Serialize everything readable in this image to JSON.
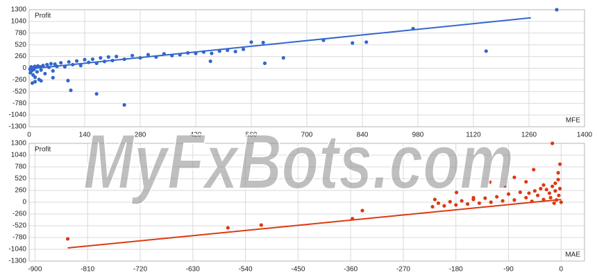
{
  "watermark": "MyFxBots.com",
  "chart_data": [
    {
      "type": "scatter",
      "y_label": "Profit",
      "x_label": "MFE",
      "color": "#3366cc",
      "x": [
        2,
        3,
        5,
        6,
        8,
        10,
        12,
        14,
        15,
        18,
        20,
        22,
        25,
        28,
        30,
        35,
        40,
        45,
        50,
        55,
        60,
        65,
        70,
        80,
        90,
        100,
        110,
        120,
        130,
        140,
        150,
        160,
        170,
        180,
        190,
        200,
        210,
        220,
        240,
        260,
        280,
        300,
        320,
        340,
        360,
        380,
        400,
        420,
        440,
        460,
        480,
        500,
        520,
        540,
        98,
        105,
        170,
        240,
        457,
        594,
        641,
        590,
        560,
        742,
        815,
        850,
        968,
        1152,
        1330,
        30,
        60,
        15,
        8
      ],
      "values": [
        -20,
        -100,
        30,
        -60,
        10,
        -150,
        -30,
        40,
        -200,
        20,
        -80,
        50,
        -250,
        30,
        -40,
        60,
        -120,
        80,
        20,
        100,
        -60,
        90,
        40,
        120,
        30,
        140,
        80,
        160,
        60,
        190,
        130,
        200,
        110,
        230,
        150,
        250,
        170,
        260,
        200,
        280,
        230,
        300,
        250,
        320,
        280,
        300,
        340,
        330,
        360,
        330,
        380,
        400,
        370,
        420,
        -275,
        -490,
        -570,
        -815,
        155,
        110,
        230,
        570,
        580,
        620,
        560,
        580,
        880,
        380,
        1300,
        -280,
        -210,
        -300,
        -330
      ],
      "trendline": {
        "x": [
          0,
          1265
        ],
        "values": [
          -15,
          1120
        ],
        "color": "#3366cc"
      },
      "xlim": [
        0,
        1400
      ],
      "xticks": [
        0,
        140,
        280,
        420,
        560,
        700,
        840,
        980,
        1120,
        1260,
        1400
      ],
      "ylim": [
        -1300,
        1300
      ],
      "yticks": [
        -1300,
        -1040,
        -780,
        -520,
        -260,
        0,
        260,
        520,
        780,
        1040,
        1300
      ],
      "grid": true
    },
    {
      "type": "scatter",
      "y_label": "Profit",
      "x_label": "MAE",
      "color": "#dc3912",
      "x": [
        0,
        -2,
        -4,
        -5,
        -8,
        -10,
        -12,
        -15,
        -18,
        -20,
        -25,
        -30,
        -35,
        -40,
        -45,
        -50,
        -55,
        -60,
        -70,
        -80,
        -90,
        -100,
        -110,
        -120,
        -130,
        -140,
        -150,
        -160,
        -170,
        -180,
        -190,
        -200,
        -210,
        -220,
        -15,
        -2,
        -122,
        -80,
        -47,
        -179,
        -216,
        -340,
        -357,
        -513,
        -570,
        -844,
        -5,
        -10,
        -30,
        -60,
        -95,
        -150
      ],
      "values": [
        0,
        300,
        150,
        500,
        50,
        250,
        -20,
        350,
        100,
        200,
        280,
        60,
        300,
        150,
        250,
        20,
        200,
        100,
        220,
        50,
        180,
        30,
        120,
        0,
        90,
        -20,
        60,
        -40,
        30,
        -60,
        10,
        -80,
        -20,
        -100,
        1300,
        840,
        445,
        550,
        720,
        215,
        60,
        -185,
        -365,
        -505,
        -565,
        -810,
        650,
        420,
        380,
        450,
        330,
        100
      ],
      "trendline": {
        "x": [
          -844,
          0
        ],
        "values": [
          -1010,
          60
        ],
        "color": "#dc3912"
      },
      "xlim": [
        -910,
        40
      ],
      "xticks": [
        -900,
        -810,
        -720,
        -630,
        -540,
        -450,
        -360,
        -270,
        -180,
        -90,
        0
      ],
      "ylim": [
        -1300,
        1300
      ],
      "yticks": [
        -1300,
        -1040,
        -780,
        -520,
        -260,
        0,
        260,
        520,
        780,
        1040,
        1300
      ],
      "grid": true
    }
  ]
}
